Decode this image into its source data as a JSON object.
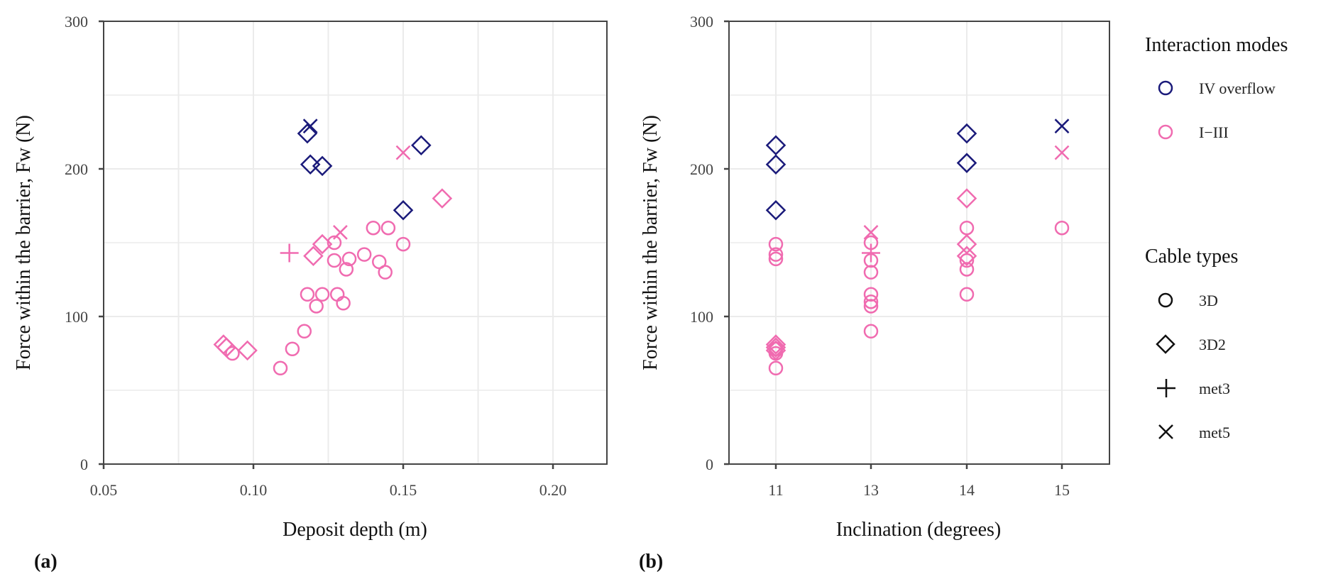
{
  "colors": {
    "iv_overflow": "#1a1a7a",
    "i_iii": "#f06bb0",
    "grid": "#ebebeb",
    "axis": "#444444"
  },
  "legend": {
    "modes_title": "Interaction modes",
    "modes": [
      {
        "key": "IV",
        "label": "IV overflow"
      },
      {
        "key": "I-III",
        "label": "I−III"
      }
    ],
    "cable_title": "Cable types",
    "cables": [
      {
        "key": "3D",
        "label": "3D",
        "shape": "circle"
      },
      {
        "key": "3D2",
        "label": "3D2",
        "shape": "diamond"
      },
      {
        "key": "met3",
        "label": "met3",
        "shape": "plus"
      },
      {
        "key": "met5",
        "label": "met5",
        "shape": "cross"
      }
    ]
  },
  "chart_data": [
    {
      "type": "scatter",
      "panel_label": "(a)",
      "title": "",
      "xlabel": "Deposit depth (m)",
      "ylabel": "Force within the barrier, Fw (N)",
      "xlim": [
        0.05,
        0.218
      ],
      "ylim": [
        0,
        300
      ],
      "xticks": [
        0.05,
        0.1,
        0.15,
        0.2
      ],
      "xtick_labels": [
        "0.05",
        "0.10",
        "0.15",
        "0.20"
      ],
      "yticks": [
        0,
        100,
        200,
        300
      ],
      "ytick_labels": [
        "0",
        "100",
        "200",
        "300"
      ],
      "grid": true,
      "points": [
        {
          "x": 0.119,
          "y": 229,
          "mode": "IV",
          "cable": "met5"
        },
        {
          "x": 0.118,
          "y": 224,
          "mode": "IV",
          "cable": "3D2"
        },
        {
          "x": 0.119,
          "y": 203,
          "mode": "IV",
          "cable": "3D2"
        },
        {
          "x": 0.123,
          "y": 202,
          "mode": "IV",
          "cable": "3D2"
        },
        {
          "x": 0.156,
          "y": 216,
          "mode": "IV",
          "cable": "3D2"
        },
        {
          "x": 0.15,
          "y": 172,
          "mode": "IV",
          "cable": "3D2"
        },
        {
          "x": 0.15,
          "y": 211,
          "mode": "I-III",
          "cable": "met5"
        },
        {
          "x": 0.129,
          "y": 157,
          "mode": "I-III",
          "cable": "met5"
        },
        {
          "x": 0.163,
          "y": 180,
          "mode": "I-III",
          "cable": "3D2"
        },
        {
          "x": 0.123,
          "y": 149,
          "mode": "I-III",
          "cable": "3D2"
        },
        {
          "x": 0.12,
          "y": 141,
          "mode": "I-III",
          "cable": "3D2"
        },
        {
          "x": 0.09,
          "y": 81,
          "mode": "I-III",
          "cable": "3D2"
        },
        {
          "x": 0.091,
          "y": 79,
          "mode": "I-III",
          "cable": "3D2"
        },
        {
          "x": 0.098,
          "y": 77,
          "mode": "I-III",
          "cable": "3D2"
        },
        {
          "x": 0.112,
          "y": 143,
          "mode": "I-III",
          "cable": "met3"
        },
        {
          "x": 0.14,
          "y": 160,
          "mode": "I-III",
          "cable": "3D"
        },
        {
          "x": 0.145,
          "y": 160,
          "mode": "I-III",
          "cable": "3D"
        },
        {
          "x": 0.15,
          "y": 149,
          "mode": "I-III",
          "cable": "3D"
        },
        {
          "x": 0.127,
          "y": 150,
          "mode": "I-III",
          "cable": "3D"
        },
        {
          "x": 0.127,
          "y": 138,
          "mode": "I-III",
          "cable": "3D"
        },
        {
          "x": 0.132,
          "y": 139,
          "mode": "I-III",
          "cable": "3D"
        },
        {
          "x": 0.131,
          "y": 132,
          "mode": "I-III",
          "cable": "3D"
        },
        {
          "x": 0.137,
          "y": 142,
          "mode": "I-III",
          "cable": "3D"
        },
        {
          "x": 0.142,
          "y": 137,
          "mode": "I-III",
          "cable": "3D"
        },
        {
          "x": 0.144,
          "y": 130,
          "mode": "I-III",
          "cable": "3D"
        },
        {
          "x": 0.118,
          "y": 115,
          "mode": "I-III",
          "cable": "3D"
        },
        {
          "x": 0.123,
          "y": 115,
          "mode": "I-III",
          "cable": "3D"
        },
        {
          "x": 0.128,
          "y": 115,
          "mode": "I-III",
          "cable": "3D"
        },
        {
          "x": 0.121,
          "y": 107,
          "mode": "I-III",
          "cable": "3D"
        },
        {
          "x": 0.13,
          "y": 109,
          "mode": "I-III",
          "cable": "3D"
        },
        {
          "x": 0.117,
          "y": 90,
          "mode": "I-III",
          "cable": "3D"
        },
        {
          "x": 0.113,
          "y": 78,
          "mode": "I-III",
          "cable": "3D"
        },
        {
          "x": 0.109,
          "y": 65,
          "mode": "I-III",
          "cable": "3D"
        },
        {
          "x": 0.093,
          "y": 75,
          "mode": "I-III",
          "cable": "3D"
        }
      ]
    },
    {
      "type": "scatter",
      "panel_label": "(b)",
      "title": "",
      "xlabel": "Inclination (degrees)",
      "ylabel": "Force within the barrier, Fw (N)",
      "categories": [
        "11",
        "13",
        "14",
        "15"
      ],
      "ylim": [
        0,
        300
      ],
      "yticks": [
        0,
        100,
        200,
        300
      ],
      "ytick_labels": [
        "0",
        "100",
        "200",
        "300"
      ],
      "grid": true,
      "points": [
        {
          "x": "11",
          "y": 216,
          "mode": "IV",
          "cable": "3D2"
        },
        {
          "x": "11",
          "y": 203,
          "mode": "IV",
          "cable": "3D2"
        },
        {
          "x": "11",
          "y": 172,
          "mode": "IV",
          "cable": "3D2"
        },
        {
          "x": "11",
          "y": 149,
          "mode": "I-III",
          "cable": "3D"
        },
        {
          "x": "11",
          "y": 142,
          "mode": "I-III",
          "cable": "3D"
        },
        {
          "x": "11",
          "y": 139,
          "mode": "I-III",
          "cable": "3D"
        },
        {
          "x": "11",
          "y": 81,
          "mode": "I-III",
          "cable": "3D2"
        },
        {
          "x": "11",
          "y": 79,
          "mode": "I-III",
          "cable": "3D2"
        },
        {
          "x": "11",
          "y": 77,
          "mode": "I-III",
          "cable": "3D2"
        },
        {
          "x": "11",
          "y": 78,
          "mode": "I-III",
          "cable": "3D"
        },
        {
          "x": "11",
          "y": 75,
          "mode": "I-III",
          "cable": "3D"
        },
        {
          "x": "11",
          "y": 65,
          "mode": "I-III",
          "cable": "3D"
        },
        {
          "x": "13",
          "y": 157,
          "mode": "I-III",
          "cable": "met5"
        },
        {
          "x": "13",
          "y": 143,
          "mode": "I-III",
          "cable": "met3"
        },
        {
          "x": "13",
          "y": 150,
          "mode": "I-III",
          "cable": "3D"
        },
        {
          "x": "13",
          "y": 138,
          "mode": "I-III",
          "cable": "3D"
        },
        {
          "x": "13",
          "y": 130,
          "mode": "I-III",
          "cable": "3D"
        },
        {
          "x": "13",
          "y": 115,
          "mode": "I-III",
          "cable": "3D"
        },
        {
          "x": "13",
          "y": 110,
          "mode": "I-III",
          "cable": "3D"
        },
        {
          "x": "13",
          "y": 107,
          "mode": "I-III",
          "cable": "3D"
        },
        {
          "x": "13",
          "y": 90,
          "mode": "I-III",
          "cable": "3D"
        },
        {
          "x": "14",
          "y": 224,
          "mode": "IV",
          "cable": "3D2"
        },
        {
          "x": "14",
          "y": 204,
          "mode": "IV",
          "cable": "3D2"
        },
        {
          "x": "14",
          "y": 180,
          "mode": "I-III",
          "cable": "3D2"
        },
        {
          "x": "14",
          "y": 160,
          "mode": "I-III",
          "cable": "3D"
        },
        {
          "x": "14",
          "y": 149,
          "mode": "I-III",
          "cable": "3D2"
        },
        {
          "x": "14",
          "y": 141,
          "mode": "I-III",
          "cable": "3D2"
        },
        {
          "x": "14",
          "y": 138,
          "mode": "I-III",
          "cable": "3D"
        },
        {
          "x": "14",
          "y": 132,
          "mode": "I-III",
          "cable": "3D"
        },
        {
          "x": "14",
          "y": 115,
          "mode": "I-III",
          "cable": "3D"
        },
        {
          "x": "15",
          "y": 229,
          "mode": "IV",
          "cable": "met5"
        },
        {
          "x": "15",
          "y": 211,
          "mode": "I-III",
          "cable": "met5"
        },
        {
          "x": "15",
          "y": 160,
          "mode": "I-III",
          "cable": "3D"
        }
      ]
    }
  ]
}
